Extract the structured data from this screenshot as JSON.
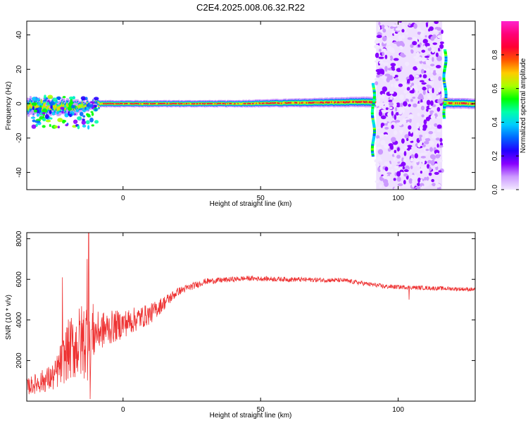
{
  "title": "C2E4.2025.008.06.32.R22",
  "chart_data": [
    {
      "type": "heatmap",
      "xlabel": "Height of straight line (km)",
      "ylabel": "Frequency (Hz)",
      "xlim": [
        -35,
        128
      ],
      "ylim": [
        -50,
        48
      ],
      "xticks": [
        0,
        50,
        100
      ],
      "yticks": [
        -40,
        -20,
        0,
        20,
        40
      ],
      "colorbar": {
        "label": "Normalized spectral amplitude",
        "range": [
          0,
          1
        ],
        "ticks": [
          "0.0",
          "0.2",
          "0.4",
          "0.6",
          "0.8"
        ],
        "colors": [
          "#f2e8ff",
          "#cc99ff",
          "#8800ff",
          "#2200ff",
          "#0066ff",
          "#00ccff",
          "#00ffaa",
          "#00ff00",
          "#aaff00",
          "#ffcc00",
          "#ff5500",
          "#ff0033",
          "#ff0077",
          "#ff22cc"
        ]
      },
      "band": [
        {
          "x": -35,
          "center": -2,
          "halfwidth": 5
        },
        {
          "x": -20,
          "center": -2,
          "halfwidth": 4
        },
        {
          "x": -10,
          "center": 0,
          "halfwidth": 2
        },
        {
          "x": 40,
          "center": 0,
          "halfwidth": 2
        },
        {
          "x": 88,
          "center": 1,
          "halfwidth": 3
        },
        {
          "x": 128,
          "center": 0,
          "halfwidth": 3
        }
      ],
      "noise_region": {
        "x": [
          92,
          116
        ],
        "y": [
          -50,
          48
        ]
      },
      "spikes": [
        {
          "x": 91,
          "y": [
            -30,
            12
          ]
        },
        {
          "x": 117,
          "y": [
            -8,
            32
          ]
        }
      ]
    },
    {
      "type": "line",
      "xlabel": "Height of straight line (km)",
      "ylabel": "SNR (10 * v/v)",
      "xlim": [
        -35,
        128
      ],
      "ylim": [
        0,
        8300
      ],
      "xticks": [
        0,
        50,
        100
      ],
      "yticks": [
        2000,
        4000,
        6000,
        8000
      ],
      "color": "#ee3333",
      "trend": [
        {
          "x": -35,
          "y": 700,
          "amp": 400
        },
        {
          "x": -25,
          "y": 1200,
          "amp": 700
        },
        {
          "x": -20,
          "y": 2500,
          "amp": 1500
        },
        {
          "x": -12,
          "y": 3200,
          "amp": 2200
        },
        {
          "x": -10,
          "y": 3400,
          "amp": 1000
        },
        {
          "x": 0,
          "y": 3800,
          "amp": 700
        },
        {
          "x": 10,
          "y": 4300,
          "amp": 500
        },
        {
          "x": 20,
          "y": 5400,
          "amp": 200
        },
        {
          "x": 30,
          "y": 5900,
          "amp": 150
        },
        {
          "x": 45,
          "y": 6050,
          "amp": 120
        },
        {
          "x": 60,
          "y": 6000,
          "amp": 120
        },
        {
          "x": 80,
          "y": 5950,
          "amp": 110
        },
        {
          "x": 95,
          "y": 5650,
          "amp": 110
        },
        {
          "x": 105,
          "y": 5600,
          "amp": 100
        },
        {
          "x": 128,
          "y": 5500,
          "amp": 100
        }
      ],
      "peaks": [
        {
          "x": -12.5,
          "y": 8300
        },
        {
          "x": -13,
          "y": 7000
        },
        {
          "x": -22,
          "y": 6100
        },
        {
          "x": -12,
          "y": 100
        },
        {
          "x": 104,
          "y": 5000
        }
      ]
    }
  ]
}
